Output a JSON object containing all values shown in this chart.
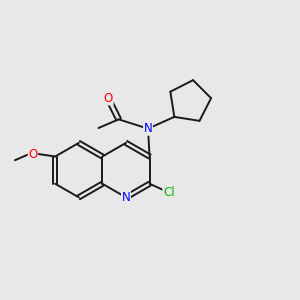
{
  "background_color": "#e8e8e8",
  "bond_color": "#1a1a1a",
  "atom_colors": {
    "O": "#ff0000",
    "N": "#0000ff",
    "Cl": "#00bb00"
  },
  "figsize": [
    3.0,
    3.0
  ],
  "dpi": 100
}
